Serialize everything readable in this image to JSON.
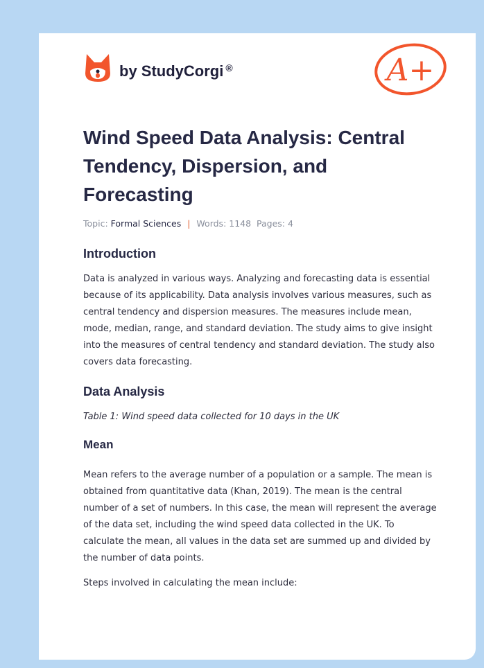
{
  "brand": {
    "name": "by StudyCorgi",
    "reg": "®",
    "grade": "A+"
  },
  "title": "Wind Speed Data Analysis: Central Tendency, Dispersion, and Forecasting",
  "meta": {
    "topic_label": "Topic:",
    "topic": "Formal Sciences",
    "separator": "|",
    "words": "Words: 1148",
    "pages": "Pages: 4"
  },
  "sections": {
    "intro_h": "Introduction",
    "intro_p": "Data is analyzed in various ways. Analyzing and forecasting data is essential because of its applicability. Data analysis involves various measures, such as central tendency and dispersion measures. The measures include mean, mode, median, range, and standard deviation. The study aims to give insight into the measures of central tendency and standard deviation. The study also covers data forecasting.",
    "analysis_h": "Data Analysis",
    "table_caption": "Table 1: Wind speed data collected for 10 days in the UK",
    "mean_h": "Mean",
    "mean_p": "Mean refers to the average number of a population or a sample. The mean is obtained from quantitative data (Khan, 2019). The mean is the central number of a set of numbers. In this case, the mean will represent the average of the data set, including the wind speed data collected in the UK. To calculate the mean, all values in the data set are summed up and divided by the number of data points.",
    "steps_p": "Steps involved in calculating the mean include:"
  }
}
